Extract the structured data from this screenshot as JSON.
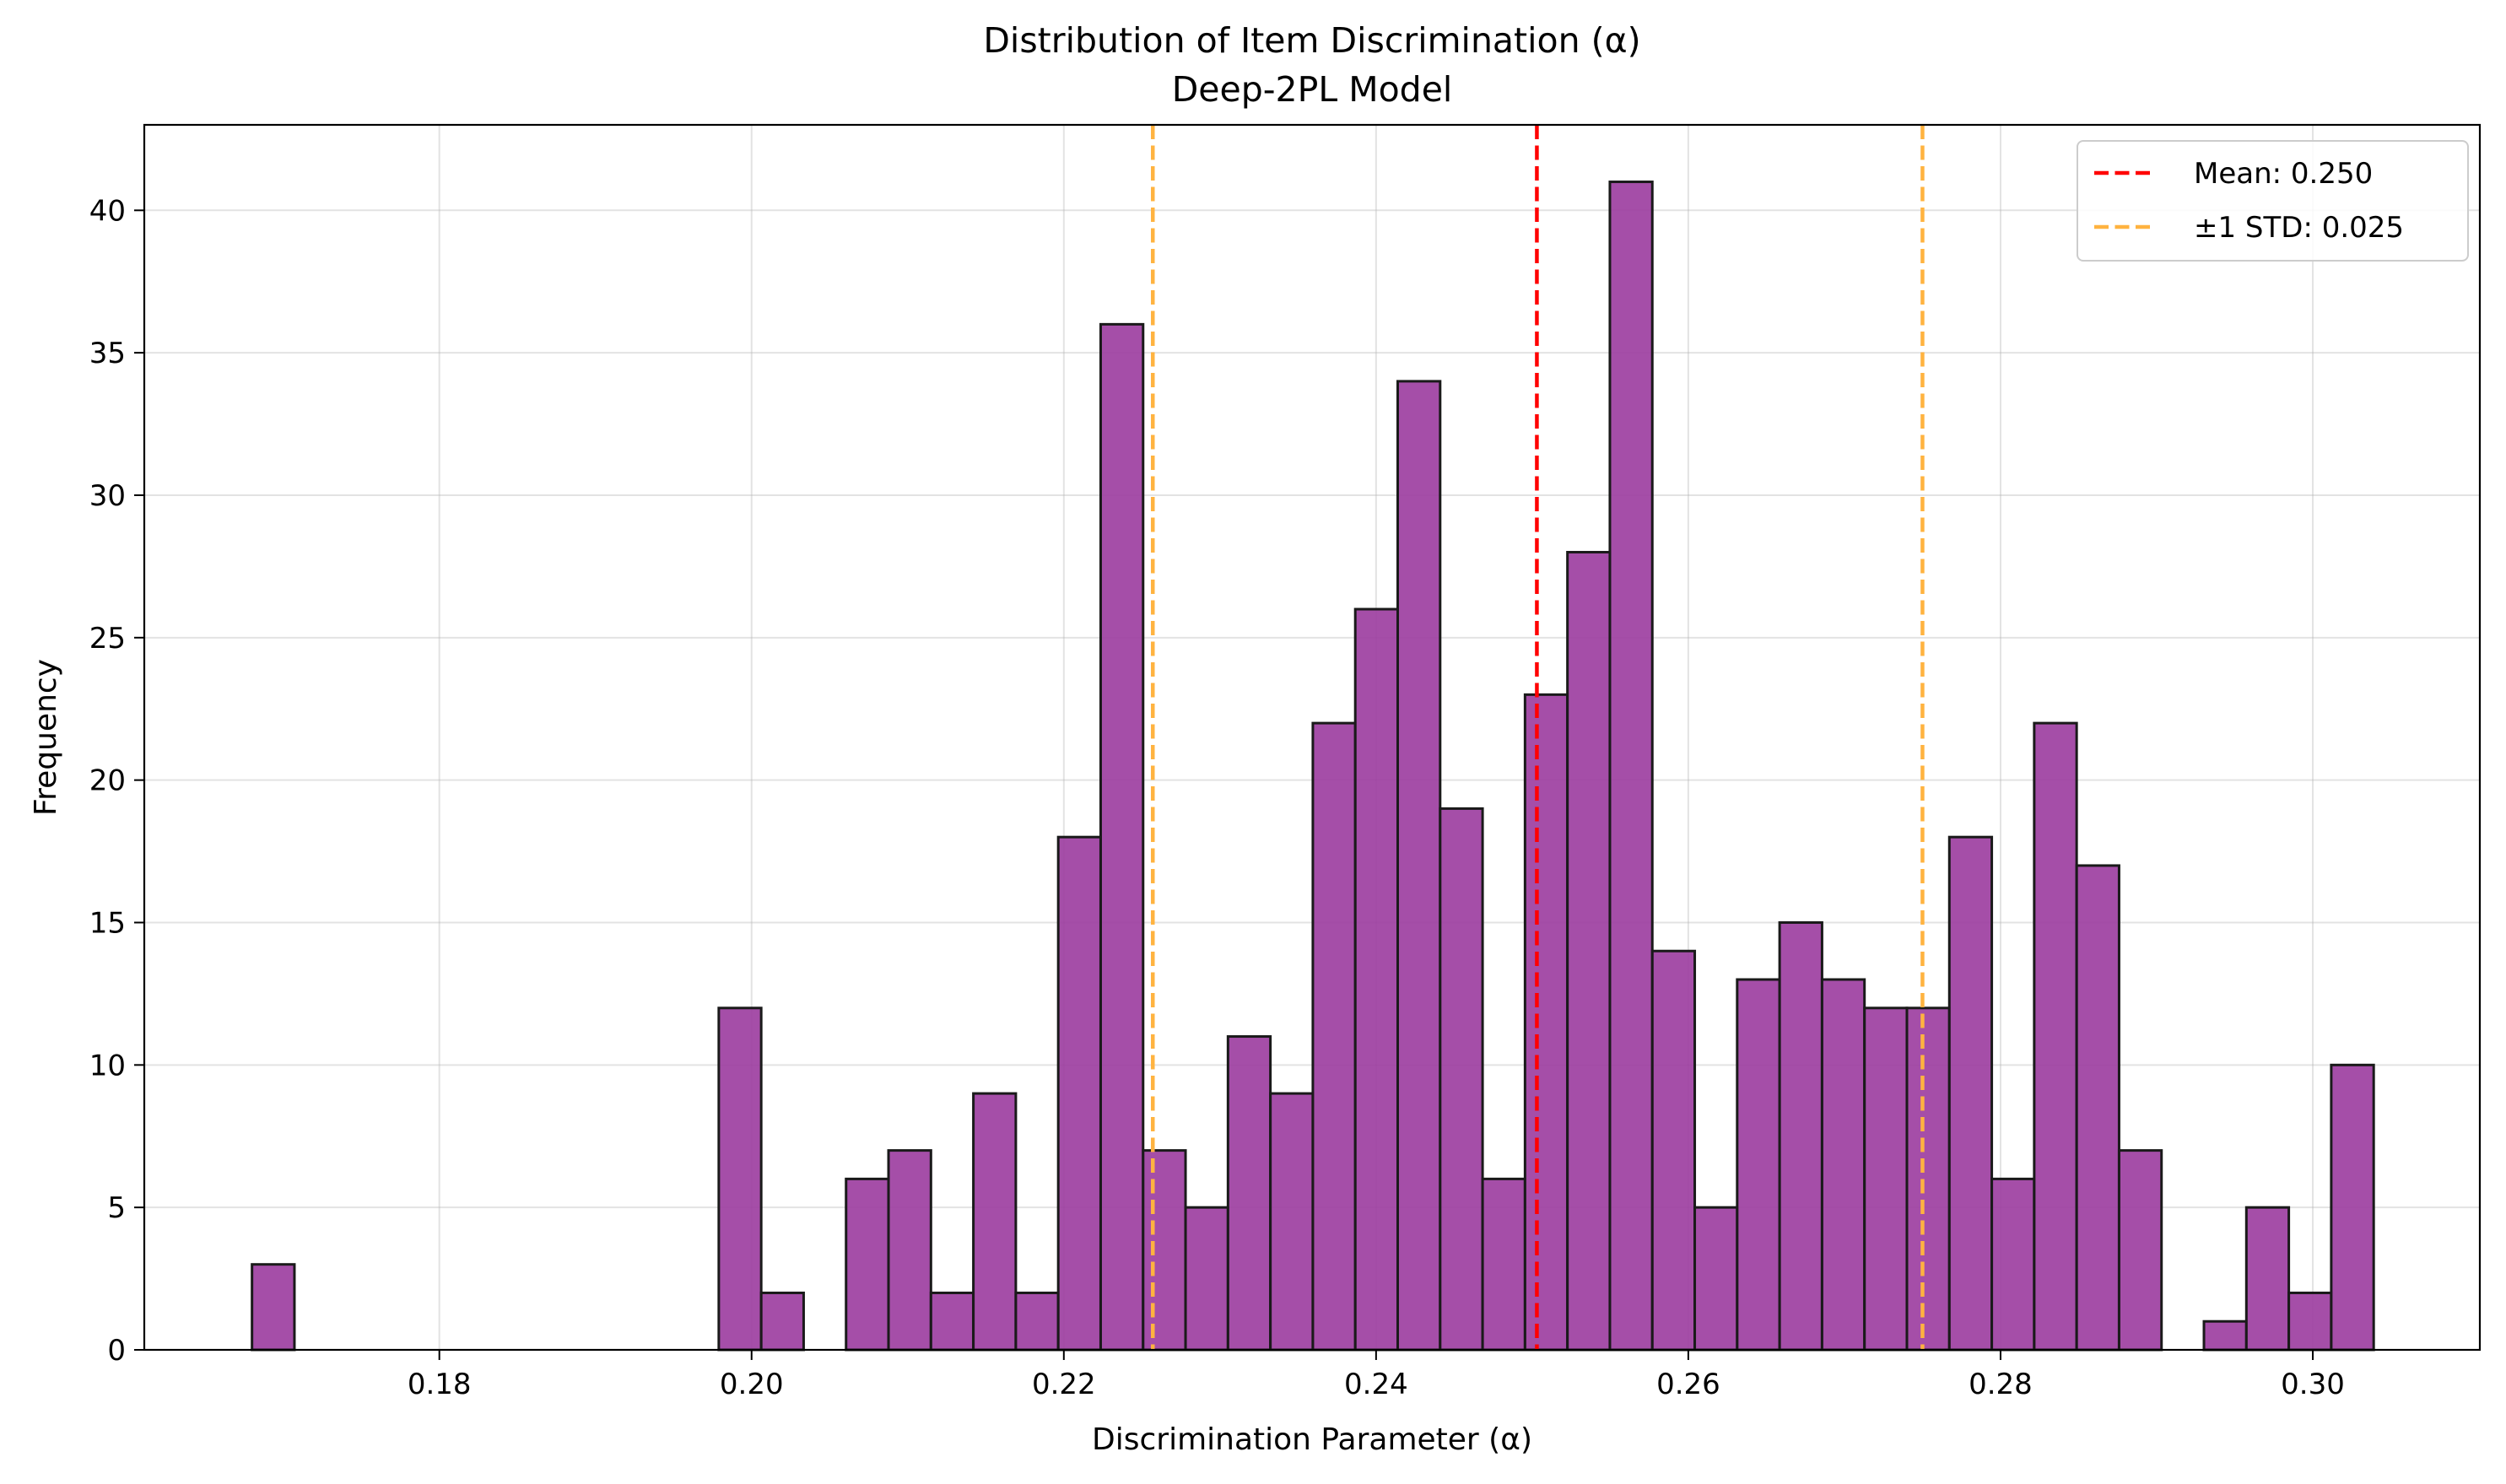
{
  "chart_data": {
    "type": "histogram",
    "title": "Distribution of Item Discrimination (α)",
    "subtitle": "Deep-2PL Model",
    "xlabel": "Discrimination Parameter (α)",
    "ylabel": "Frequency",
    "xlim": [
      0.1611,
      0.3107
    ],
    "ylim": [
      0,
      43
    ],
    "x_ticks": [
      "0.18",
      "0.20",
      "0.22",
      "0.24",
      "0.26",
      "0.28",
      "0.30"
    ],
    "y_ticks": [
      "0",
      "5",
      "10",
      "15",
      "20",
      "25",
      "30",
      "35",
      "40"
    ],
    "grid": true,
    "bin_start": 0.168,
    "bin_width": 0.002718,
    "counts": [
      3,
      0,
      0,
      0,
      0,
      0,
      0,
      0,
      0,
      0,
      0,
      12,
      2,
      0,
      6,
      7,
      2,
      9,
      2,
      18,
      36,
      7,
      5,
      11,
      9,
      22,
      26,
      34,
      19,
      6,
      23,
      28,
      41,
      14,
      5,
      13,
      15,
      13,
      12,
      12,
      18,
      6,
      22,
      17,
      7,
      0,
      1,
      5,
      2,
      10
    ],
    "bar_color": "#9b3b9f",
    "bar_edge_color": "#1a1a1a",
    "reference_lines": [
      {
        "x": 0.2503,
        "color": "#ff0000"
      },
      {
        "x": 0.2257,
        "color": "#ffb340"
      },
      {
        "x": 0.275,
        "color": "#ffb340"
      }
    ],
    "legend": {
      "position": "upper right",
      "entries": [
        {
          "label": "Mean: 0.250",
          "color": "#ff0000"
        },
        {
          "label": "±1 STD: 0.025",
          "color": "#ffb340"
        }
      ]
    }
  }
}
